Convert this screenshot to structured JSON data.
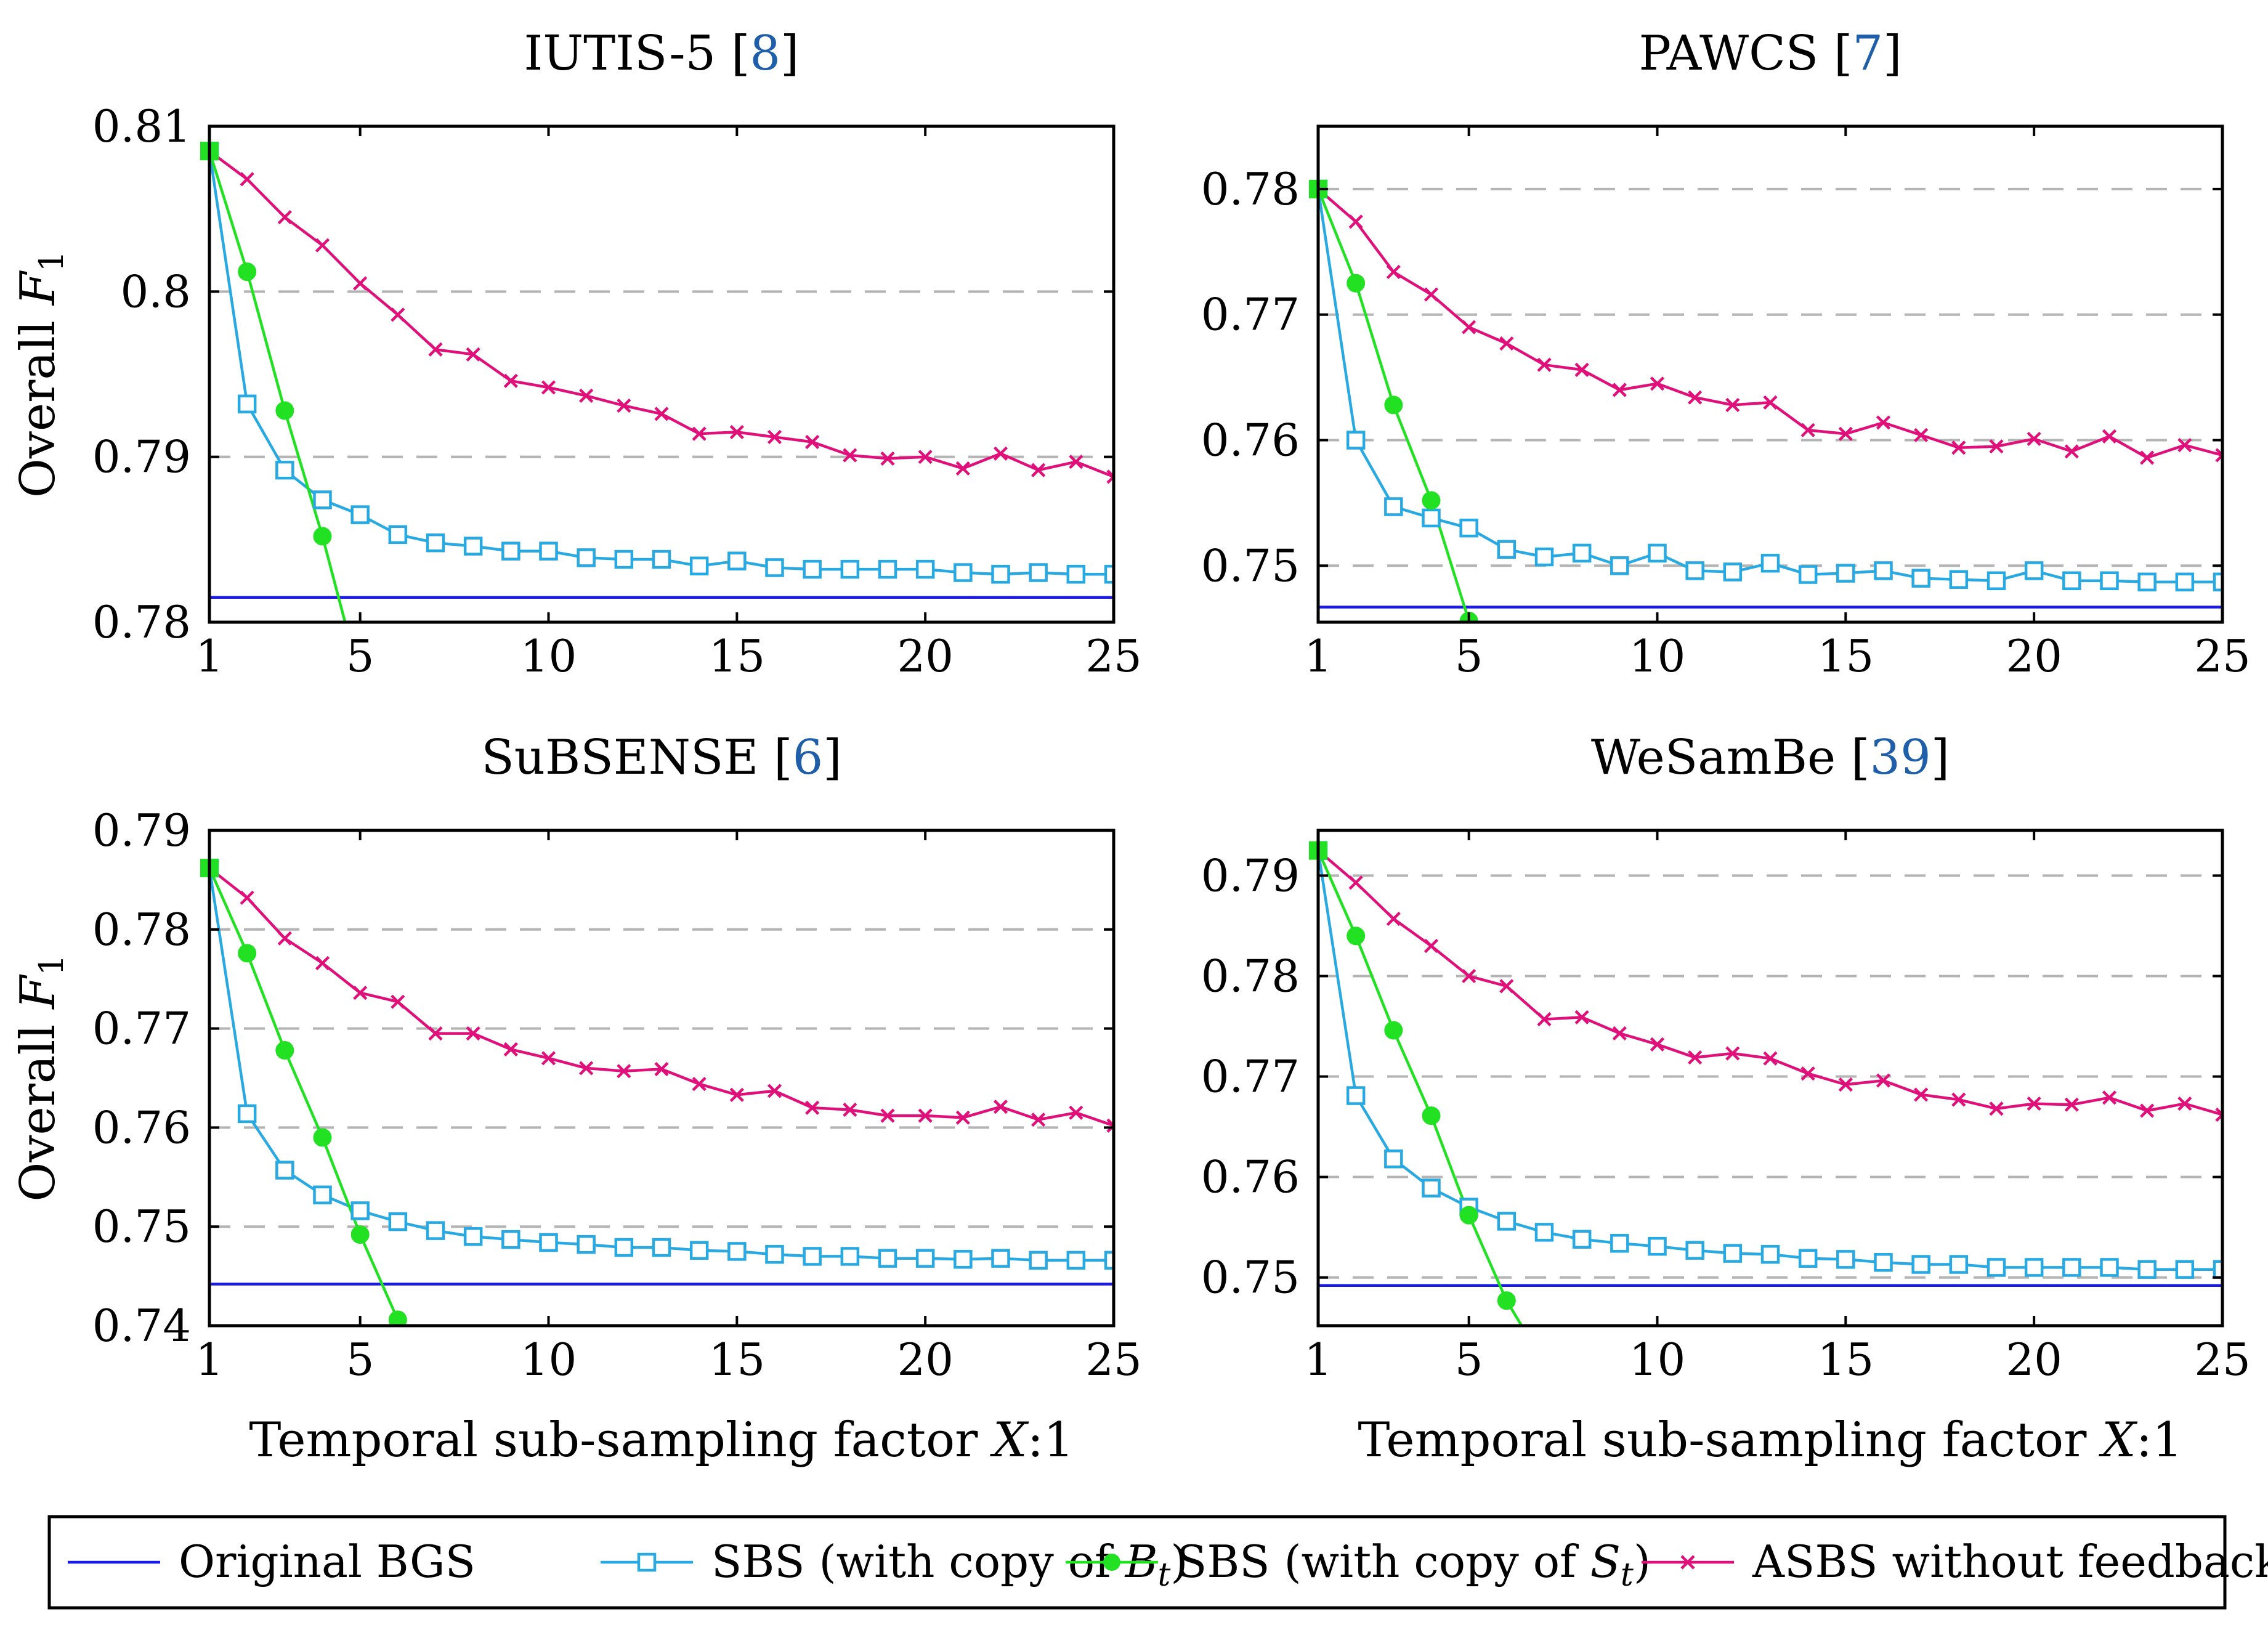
{
  "legend": [
    {
      "key": "orig",
      "label": "Original BGS",
      "color": "#1a1ae6",
      "marker": "none"
    },
    {
      "key": "sbs_b",
      "label": "SBS (with copy of B",
      "sub": "t",
      "label_end": ")",
      "color": "#29a9e1",
      "marker": "square"
    },
    {
      "key": "sbs_s",
      "label": "SBS (with copy of S",
      "sub": "t",
      "label_end": ")",
      "color": "#22e022",
      "marker": "circle"
    },
    {
      "key": "asbs",
      "label": "ASBS without feedback",
      "color": "#e0107a",
      "marker": "x"
    }
  ],
  "x_axis_label": "Temporal sub-sampling factor X:1",
  "y_axis_label": "Overall F",
  "y_axis_sub": "1",
  "chart_data": [
    {
      "type": "line",
      "title": "IUTIS-5",
      "cite": "8",
      "xlim": [
        1,
        25
      ],
      "ylim": [
        0.78,
        0.81
      ],
      "xticks": [
        1,
        5,
        10,
        15,
        20,
        25
      ],
      "yticks": [
        0.78,
        0.79,
        0.8,
        0.81
      ],
      "ytick_labels": [
        "0.78",
        "0.79",
        "0.8",
        "0.81"
      ],
      "grid_y": [
        0.79,
        0.8
      ],
      "series": [
        {
          "name": "Original BGS",
          "x": [
            1,
            25
          ],
          "values": [
            0.7815,
            0.7815
          ]
        },
        {
          "name": "SBS (with copy of Bt)",
          "x": [
            1,
            2,
            3,
            4,
            5,
            6,
            7,
            8,
            9,
            10,
            11,
            12,
            13,
            14,
            15,
            16,
            17,
            18,
            19,
            20,
            21,
            22,
            23,
            24,
            25
          ],
          "values": [
            0.8085,
            0.7932,
            0.7892,
            0.7874,
            0.7865,
            0.7853,
            0.7848,
            0.7846,
            0.7843,
            0.7843,
            0.7839,
            0.7838,
            0.7838,
            0.7834,
            0.7837,
            0.7833,
            0.7832,
            0.7832,
            0.7832,
            0.7832,
            0.783,
            0.7829,
            0.783,
            0.7829,
            0.7829
          ]
        },
        {
          "name": "SBS (with copy of St)",
          "x": [
            1,
            2,
            3,
            4,
            4.6
          ],
          "values": [
            0.8085,
            0.8012,
            0.7928,
            0.7852,
            0.78
          ]
        },
        {
          "name": "ASBS without feedback",
          "x": [
            1,
            2,
            3,
            4,
            5,
            6,
            7,
            8,
            9,
            10,
            11,
            12,
            13,
            14,
            15,
            16,
            17,
            18,
            19,
            20,
            21,
            22,
            23,
            24,
            25
          ],
          "values": [
            0.8085,
            0.8068,
            0.8045,
            0.8028,
            0.8005,
            0.7986,
            0.7965,
            0.7962,
            0.7946,
            0.7942,
            0.7937,
            0.7931,
            0.7926,
            0.7914,
            0.7915,
            0.7912,
            0.7909,
            0.7901,
            0.7899,
            0.79,
            0.7893,
            0.7902,
            0.7892,
            0.7897,
            0.7888
          ]
        }
      ]
    },
    {
      "type": "line",
      "title": "PAWCS",
      "cite": "7",
      "xlim": [
        1,
        25
      ],
      "ylim": [
        0.7455,
        0.785
      ],
      "xticks": [
        1,
        5,
        10,
        15,
        20,
        25
      ],
      "yticks": [
        0.75,
        0.76,
        0.77,
        0.78
      ],
      "ytick_labels": [
        "0.75",
        "0.76",
        "0.77",
        "0.78"
      ],
      "grid_y": [
        0.75,
        0.76,
        0.77,
        0.78
      ],
      "series": [
        {
          "name": "Original BGS",
          "x": [
            1,
            25
          ],
          "values": [
            0.7467,
            0.7467
          ]
        },
        {
          "name": "SBS (with copy of Bt)",
          "x": [
            1,
            2,
            3,
            4,
            5,
            6,
            7,
            8,
            9,
            10,
            11,
            12,
            13,
            14,
            15,
            16,
            17,
            18,
            19,
            20,
            21,
            22,
            23,
            24,
            25
          ],
          "values": [
            0.78,
            0.76,
            0.7547,
            0.7538,
            0.753,
            0.7513,
            0.7507,
            0.751,
            0.75,
            0.751,
            0.7496,
            0.7495,
            0.7502,
            0.7493,
            0.7494,
            0.7496,
            0.749,
            0.7489,
            0.7488,
            0.7496,
            0.7488,
            0.7488,
            0.7487,
            0.7487,
            0.7487
          ]
        },
        {
          "name": "SBS (with copy of St)",
          "x": [
            1,
            2,
            3,
            4,
            5
          ],
          "values": [
            0.78,
            0.7725,
            0.7628,
            0.7552,
            0.7456
          ]
        },
        {
          "name": "ASBS without feedback",
          "x": [
            1,
            2,
            3,
            4,
            5,
            6,
            7,
            8,
            9,
            10,
            11,
            12,
            13,
            14,
            15,
            16,
            17,
            18,
            19,
            20,
            21,
            22,
            23,
            24,
            25
          ],
          "values": [
            0.78,
            0.7774,
            0.7734,
            0.7716,
            0.769,
            0.7677,
            0.766,
            0.7656,
            0.764,
            0.7645,
            0.7634,
            0.7628,
            0.763,
            0.7608,
            0.7605,
            0.7614,
            0.7604,
            0.7594,
            0.7595,
            0.7601,
            0.7591,
            0.7603,
            0.7586,
            0.7596,
            0.7588
          ]
        }
      ]
    },
    {
      "type": "line",
      "title": "SuBSENSE",
      "cite": "6",
      "xlim": [
        1,
        25
      ],
      "ylim": [
        0.74,
        0.79
      ],
      "xticks": [
        1,
        5,
        10,
        15,
        20,
        25
      ],
      "yticks": [
        0.74,
        0.75,
        0.76,
        0.77,
        0.78,
        0.79
      ],
      "ytick_labels": [
        "0.74",
        "0.75",
        "0.76",
        "0.77",
        "0.78",
        "0.79"
      ],
      "grid_y": [
        0.75,
        0.76,
        0.77,
        0.78
      ],
      "series": [
        {
          "name": "Original BGS",
          "x": [
            1,
            25
          ],
          "values": [
            0.7442,
            0.7442
          ]
        },
        {
          "name": "SBS (with copy of Bt)",
          "x": [
            1,
            2,
            3,
            4,
            5,
            6,
            7,
            8,
            9,
            10,
            11,
            12,
            13,
            14,
            15,
            16,
            17,
            18,
            19,
            20,
            21,
            22,
            23,
            24,
            25
          ],
          "values": [
            0.7862,
            0.7614,
            0.7557,
            0.7532,
            0.7516,
            0.7505,
            0.7496,
            0.749,
            0.7487,
            0.7484,
            0.7482,
            0.7479,
            0.7479,
            0.7476,
            0.7475,
            0.7472,
            0.747,
            0.747,
            0.7468,
            0.7468,
            0.7467,
            0.7468,
            0.7466,
            0.7466,
            0.7466
          ]
        },
        {
          "name": "SBS (with copy of St)",
          "x": [
            1,
            2,
            3,
            4,
            5,
            6
          ],
          "values": [
            0.7862,
            0.7776,
            0.7678,
            0.759,
            0.7492,
            0.7406
          ]
        },
        {
          "name": "ASBS without feedback",
          "x": [
            1,
            2,
            3,
            4,
            5,
            6,
            7,
            8,
            9,
            10,
            11,
            12,
            13,
            14,
            15,
            16,
            17,
            18,
            19,
            20,
            21,
            22,
            23,
            24,
            25
          ],
          "values": [
            0.7862,
            0.7832,
            0.7791,
            0.7766,
            0.7736,
            0.7727,
            0.7695,
            0.7695,
            0.7679,
            0.767,
            0.766,
            0.7657,
            0.7659,
            0.7644,
            0.7633,
            0.7637,
            0.762,
            0.7618,
            0.7612,
            0.7612,
            0.761,
            0.7621,
            0.7608,
            0.7615,
            0.7602
          ]
        }
      ]
    },
    {
      "type": "line",
      "title": "WeSamBe",
      "cite": "39",
      "xlim": [
        1,
        25
      ],
      "ylim": [
        0.7452,
        0.7945
      ],
      "xticks": [
        1,
        5,
        10,
        15,
        20,
        25
      ],
      "yticks": [
        0.75,
        0.76,
        0.77,
        0.78,
        0.79
      ],
      "ytick_labels": [
        "0.75",
        "0.76",
        "0.77",
        "0.78",
        "0.79"
      ],
      "grid_y": [
        0.75,
        0.76,
        0.77,
        0.78,
        0.79
      ],
      "series": [
        {
          "name": "Original BGS",
          "x": [
            1,
            25
          ],
          "values": [
            0.7492,
            0.7492
          ]
        },
        {
          "name": "SBS (with copy of Bt)",
          "x": [
            1,
            2,
            3,
            4,
            5,
            6,
            7,
            8,
            9,
            10,
            11,
            12,
            13,
            14,
            15,
            16,
            17,
            18,
            19,
            20,
            21,
            22,
            23,
            24,
            25
          ],
          "values": [
            0.7925,
            0.7681,
            0.7618,
            0.7589,
            0.757,
            0.7556,
            0.7545,
            0.7538,
            0.7534,
            0.7531,
            0.7527,
            0.7524,
            0.7523,
            0.7519,
            0.7518,
            0.7515,
            0.7513,
            0.7513,
            0.751,
            0.751,
            0.751,
            0.751,
            0.7508,
            0.7508,
            0.7508
          ]
        },
        {
          "name": "SBS (with copy of St)",
          "x": [
            1,
            2,
            3,
            4,
            5,
            6,
            6.4
          ],
          "values": [
            0.7925,
            0.784,
            0.7746,
            0.7661,
            0.7562,
            0.7477,
            0.7452
          ]
        },
        {
          "name": "ASBS without feedback",
          "x": [
            1,
            2,
            3,
            4,
            5,
            6,
            7,
            8,
            9,
            10,
            11,
            12,
            13,
            14,
            15,
            16,
            17,
            18,
            19,
            20,
            21,
            22,
            23,
            24,
            25
          ],
          "values": [
            0.7925,
            0.7893,
            0.7857,
            0.783,
            0.78,
            0.779,
            0.7757,
            0.7759,
            0.7743,
            0.7732,
            0.7719,
            0.7723,
            0.7718,
            0.7703,
            0.7692,
            0.7696,
            0.7682,
            0.7677,
            0.7668,
            0.7673,
            0.7672,
            0.7679,
            0.7666,
            0.7673,
            0.7662
          ]
        }
      ]
    }
  ]
}
